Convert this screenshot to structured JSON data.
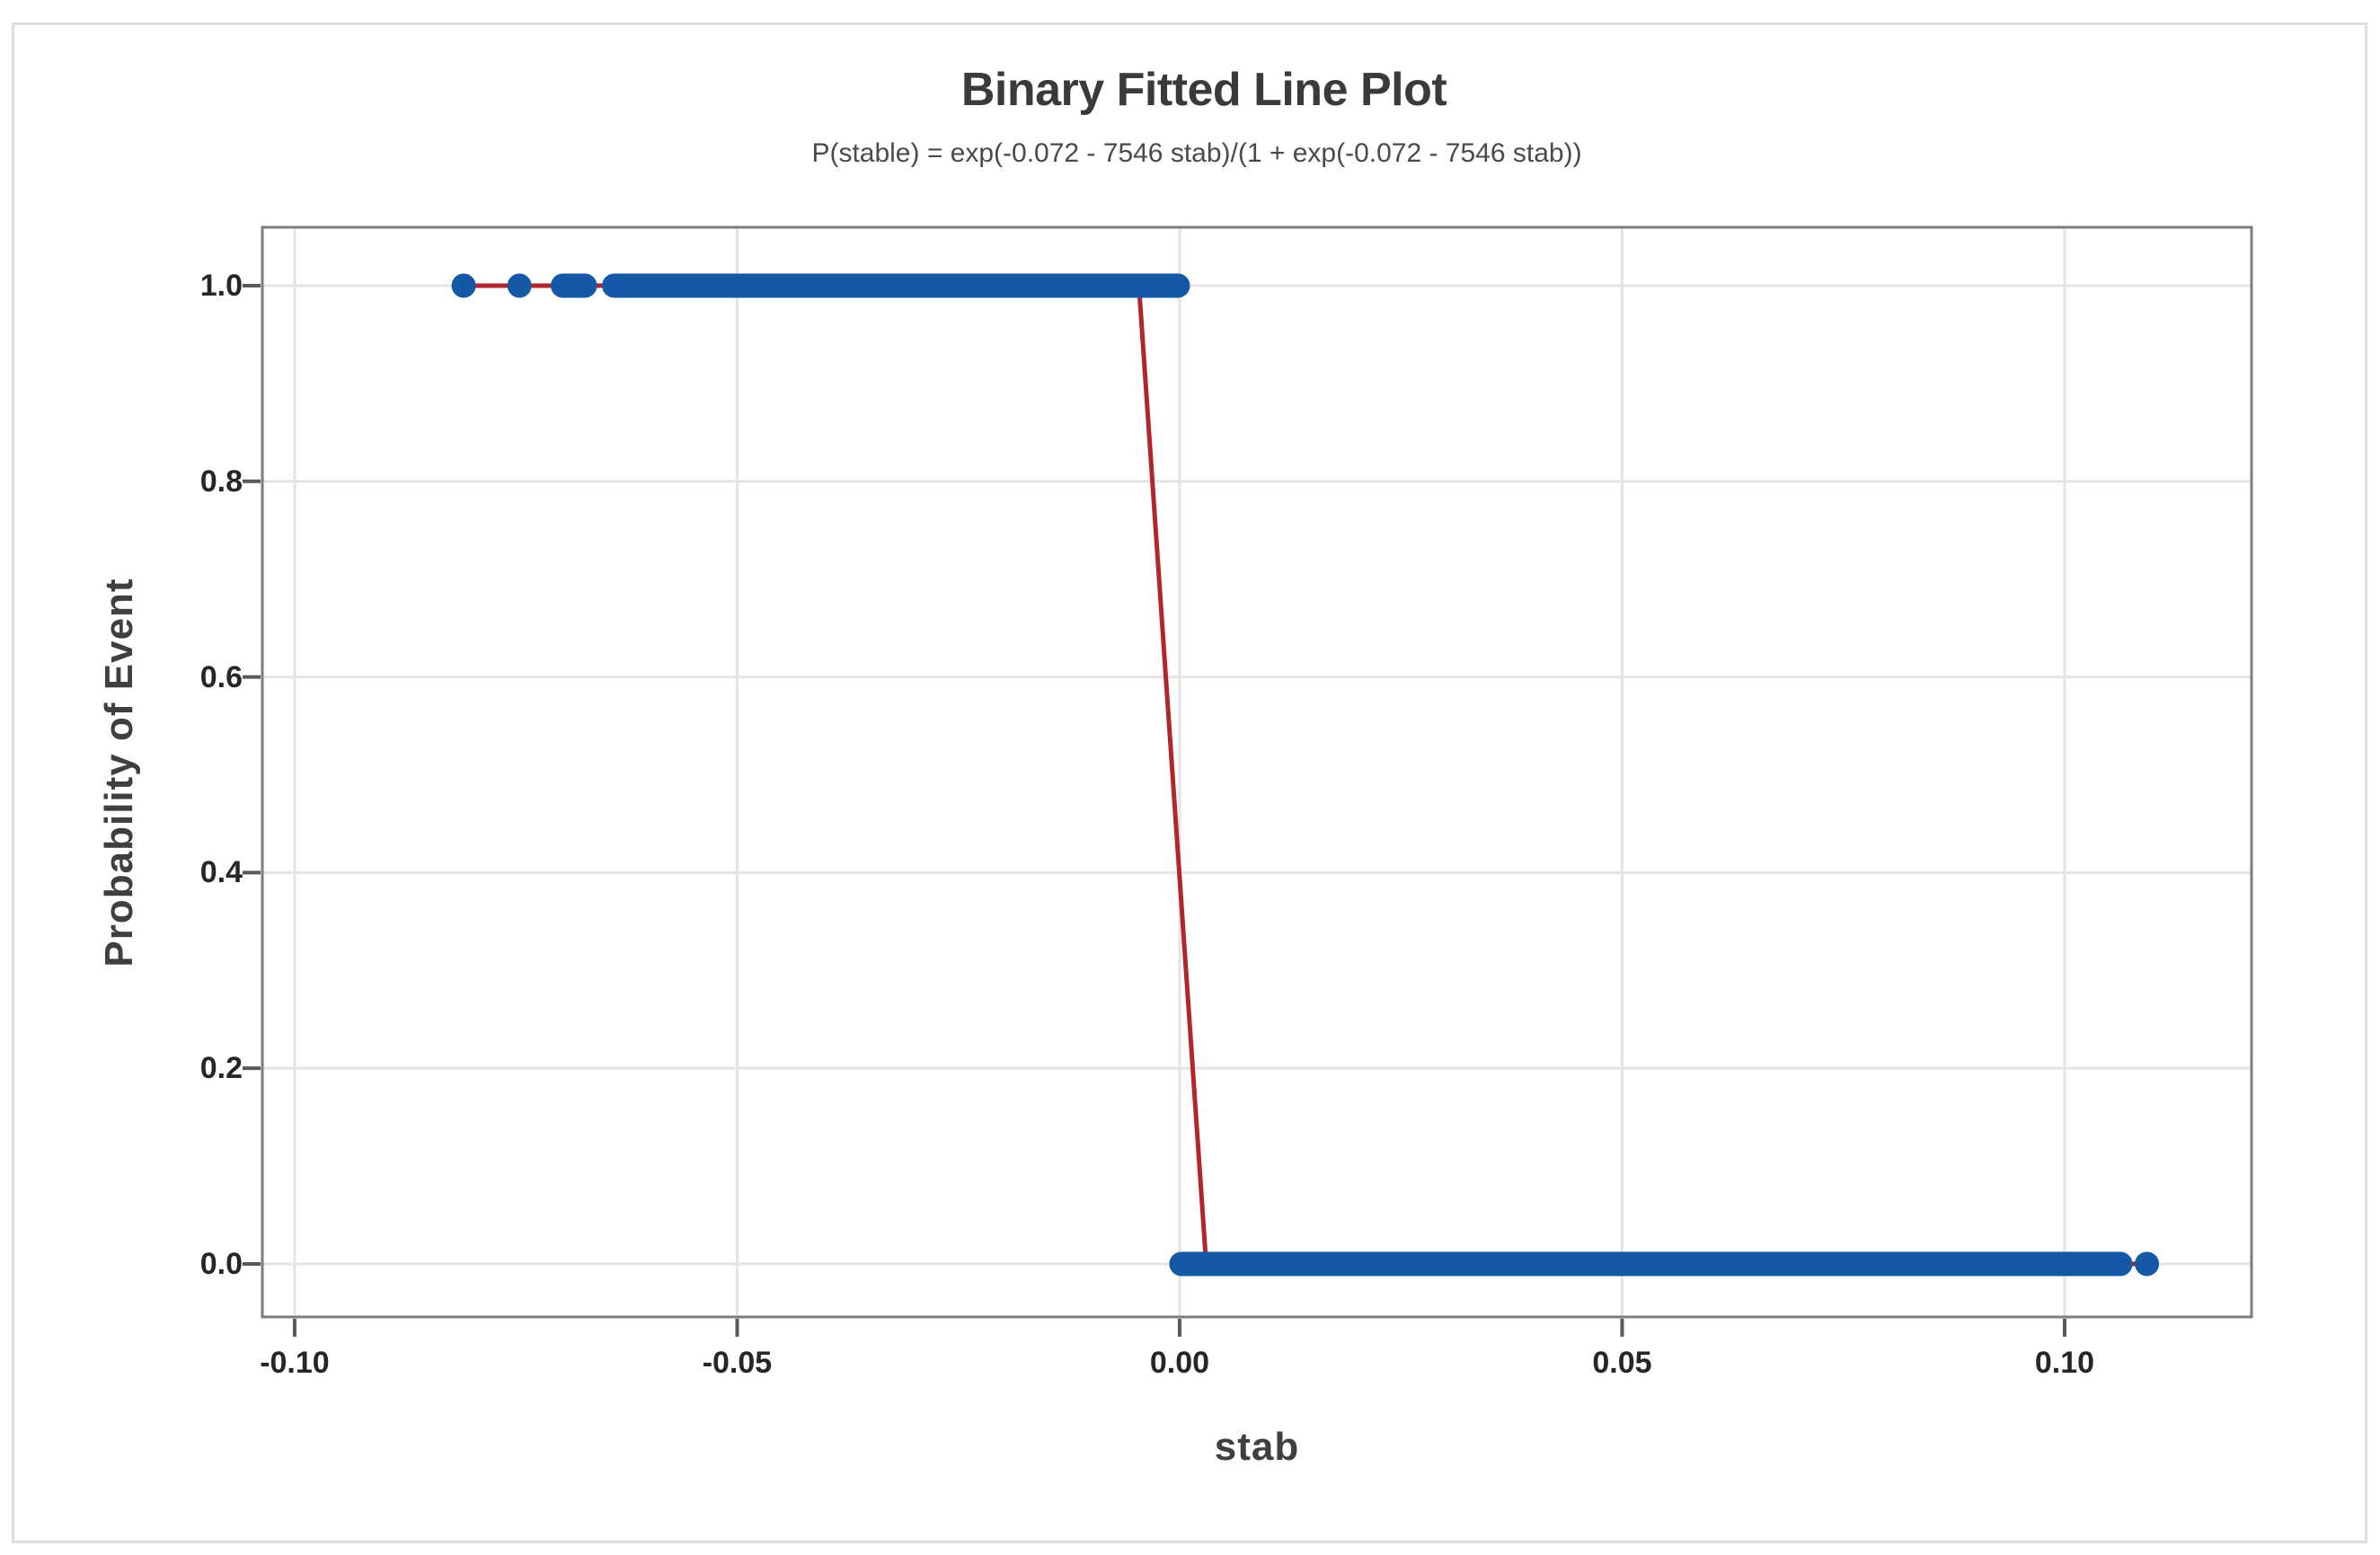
{
  "figure": {
    "title": "Binary Fitted Line Plot",
    "subtitle": "P(stable) = exp(-0.072 - 7546 stab)/(1 + exp(-0.072 - 7546 stab))"
  },
  "chart_data": {
    "type": "scatter",
    "title": "Binary Fitted Line Plot",
    "subtitle": "P(stable) = exp(-0.072 - 7546 stab)/(1 + exp(-0.072 - 7546 stab))",
    "xlabel": "stab",
    "ylabel": "Probability of Event",
    "xlim": [
      -0.10365,
      0.12112
    ],
    "ylim": [
      -0.0542,
      1.0597
    ],
    "grid": true,
    "legend": "none",
    "x_ticks": {
      "values": [
        -0.1,
        -0.05,
        0.0,
        0.05,
        0.1
      ],
      "labels": [
        "-0.10",
        "-0.05",
        "0.00",
        "0.05",
        "0.10"
      ]
    },
    "y_ticks": {
      "values": [
        0.0,
        0.2,
        0.4,
        0.6,
        0.8,
        1.0
      ],
      "labels": [
        "0.0",
        "0.2",
        "0.4",
        "0.6",
        "0.8",
        "1.0"
      ]
    },
    "fitted_line": {
      "name": "logistic-fit-line",
      "equation": "P(stable) = exp(-0.072 - 7546 stab)/(1 + exp(-0.072 - 7546 stab))",
      "intercept": -0.072,
      "slope": -7546,
      "color": "#b2252a",
      "points": [
        [
          -0.0809,
          1.0
        ],
        [
          -0.0046,
          1.0
        ],
        [
          0.003,
          0.0
        ],
        [
          0.1093,
          0.0
        ]
      ]
    },
    "observations": {
      "name": "observed-stable-outcomes",
      "color": "#1558a5",
      "marker": "filled-circle",
      "y1": {
        "event_probability": 1.0,
        "isolated_x": [
          -0.0809,
          -0.0746
        ],
        "dense_runs_x": [
          [
            -0.0697,
            -0.0672
          ],
          [
            -0.0639,
            -0.0002
          ]
        ]
      },
      "y0": {
        "event_probability": 0.0,
        "isolated_x": [
          0.1093
        ],
        "dense_runs_x": [
          [
            0.0002,
            0.1063
          ]
        ]
      }
    },
    "colors": {
      "background": "#ffffff",
      "figure_border": "#dedede",
      "frame": "#7d7d7d",
      "grid": "#e4e4e4",
      "tick": "#595959",
      "tick_label": "#262626",
      "axis_title": "#3f3f3f",
      "title": "#3a3a3a",
      "subtitle": "#4a4a4a",
      "points": "#1558a5",
      "line": "#b2252a"
    }
  }
}
